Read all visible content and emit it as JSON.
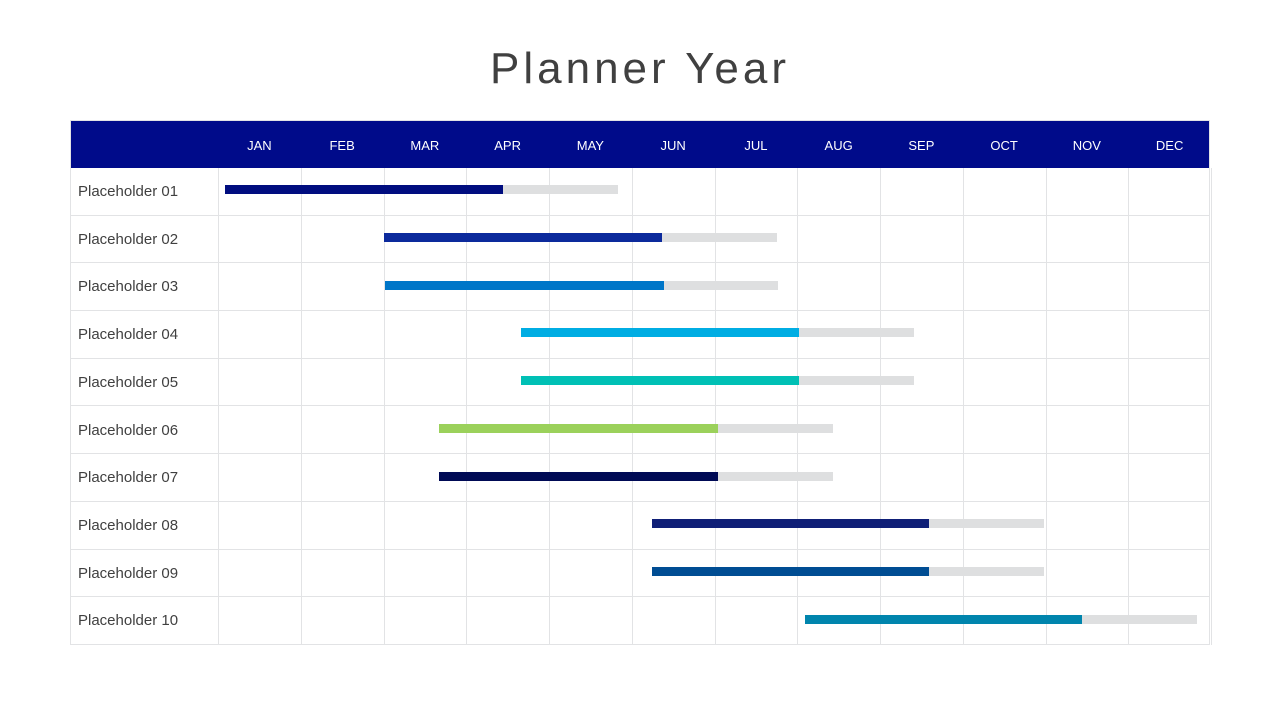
{
  "title": "Planner Year",
  "chart_data": {
    "type": "bar",
    "subtype": "gantt",
    "months": [
      "JAN",
      "FEB",
      "MAR",
      "APR",
      "MAY",
      "JUN",
      "JUL",
      "AUG",
      "SEP",
      "OCT",
      "NOV",
      "DEC"
    ],
    "header_color": "#000b8a",
    "remaining_color": "#dedfe0",
    "grid": true,
    "tasks": [
      {
        "label": "Placeholder 01",
        "start": 0.08,
        "progress_end": 3.45,
        "end": 4.83,
        "color": "#000d7f"
      },
      {
        "label": "Placeholder 02",
        "start": 2.0,
        "progress_end": 5.37,
        "end": 6.75,
        "color": "#0c2a9c"
      },
      {
        "label": "Placeholder 03",
        "start": 2.02,
        "progress_end": 5.39,
        "end": 6.77,
        "color": "#0076c8"
      },
      {
        "label": "Placeholder 04",
        "start": 3.66,
        "progress_end": 7.02,
        "end": 8.41,
        "color": "#00ade3"
      },
      {
        "label": "Placeholder 05",
        "start": 3.66,
        "progress_end": 7.02,
        "end": 8.41,
        "color": "#00c0b5"
      },
      {
        "label": "Placeholder 06",
        "start": 2.67,
        "progress_end": 6.04,
        "end": 7.43,
        "color": "#9bd15b"
      },
      {
        "label": "Placeholder 07",
        "start": 2.67,
        "progress_end": 6.04,
        "end": 7.43,
        "color": "#000a55"
      },
      {
        "label": "Placeholder 08",
        "start": 5.24,
        "progress_end": 8.59,
        "end": 9.98,
        "color": "#0f1f77"
      },
      {
        "label": "Placeholder 09",
        "start": 5.24,
        "progress_end": 8.59,
        "end": 9.98,
        "color": "#004d93"
      },
      {
        "label": "Placeholder 10",
        "start": 7.09,
        "progress_end": 10.44,
        "end": 11.83,
        "color": "#0085ad"
      }
    ]
  }
}
